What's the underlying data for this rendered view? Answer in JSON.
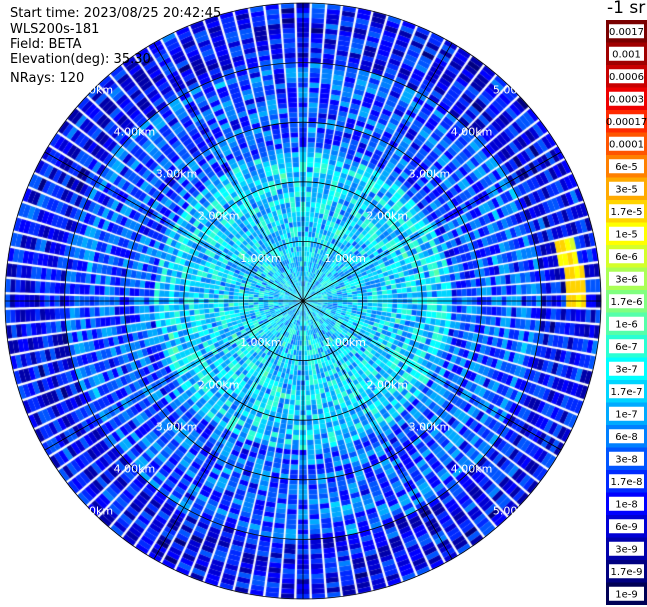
{
  "header": {
    "start_time": "Start time: 2023/08/25 20:42:45",
    "instrument": "WLS200s-181",
    "field": "Field: BETA",
    "elevation": "Elevation(deg): 35.30",
    "nrays": "NRays: 120"
  },
  "colorbar": {
    "title": "-1 sr",
    "labels": [
      "0.0017",
      "0.001",
      "0.0006",
      "0.0003",
      "0.00017",
      "0.0001",
      "6e-5",
      "3e-5",
      "1.7e-5",
      "1e-5",
      "6e-6",
      "3e-6",
      "1.7e-6",
      "1e-6",
      "6e-7",
      "3e-7",
      "1.7e-7",
      "1e-7",
      "6e-8",
      "3e-8",
      "1.7e-8",
      "1e-8",
      "6e-9",
      "3e-9",
      "1.7e-9",
      "1e-9"
    ],
    "colors": [
      "#7a0000",
      "#a00000",
      "#c80000",
      "#ee0000",
      "#ff2a00",
      "#ff5500",
      "#ff8000",
      "#ffaa00",
      "#ffd400",
      "#ffff00",
      "#d4ff2a",
      "#aaff55",
      "#80ff80",
      "#55ffaa",
      "#2affd4",
      "#00ffff",
      "#00d4ff",
      "#00aaff",
      "#0080ff",
      "#0055ff",
      "#002aff",
      "#0000ff",
      "#0000d4",
      "#0000aa",
      "#000080",
      "#000055"
    ]
  },
  "chart_data": {
    "type": "heatmap",
    "projection": "polar (PPI scan)",
    "field": "BETA",
    "units": "-1 sr",
    "nrays": 120,
    "range_rings_km": [
      1,
      2,
      3,
      4,
      5
    ],
    "ring_labels": [
      "1.00km",
      "2.00km",
      "3.00km",
      "4.00km",
      "5.00km"
    ],
    "max_range_km": 5.0,
    "spoke_interval_deg": 30,
    "color_scale": "log",
    "value_range": [
      1e-09,
      0.0017
    ],
    "typical_values": [
      {
        "range_km": [
          0,
          2.5
        ],
        "beta": 1.7e-07
      },
      {
        "range_km": [
          2.5,
          4.0
        ],
        "beta": 3e-08
      },
      {
        "range_km": [
          4.0,
          5.0
        ],
        "beta": 1e-08
      }
    ],
    "hot_spots": [
      {
        "azimuth_deg": 87,
        "range_km": 4.6,
        "beta": 1.7e-05
      },
      {
        "azimuth_deg": 80,
        "range_km": 4.5,
        "beta": 1e-05
      }
    ]
  }
}
